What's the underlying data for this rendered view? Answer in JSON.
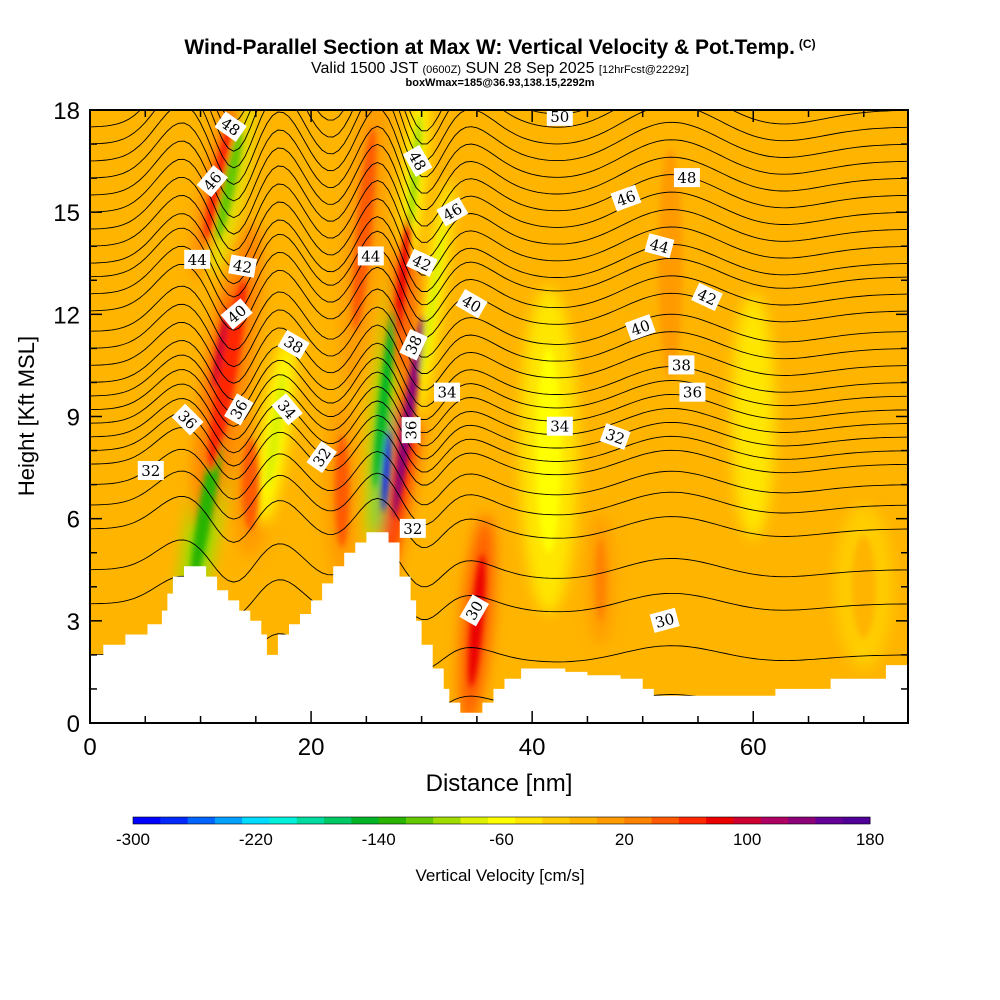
{
  "header": {
    "title": "Wind-Parallel Section at Max W: Vertical Velocity & Pot.Temp.",
    "title_mark": "(C)",
    "valid_prefix": "Valid 1500 JST",
    "valid_utc": "(0600Z)",
    "valid_date": "SUN 28 Sep 2025",
    "forecast_tag": "[12hrFcst@2229z]",
    "box_info": "boxWmax=185@36.93,138.15,2292m"
  },
  "chart_data": {
    "type": "heatmap",
    "title": "Wind-Parallel Section at Max W: Vertical Velocity & Pot.Temp.",
    "xlabel": "Distance [nm]",
    "ylabel": "Height [Kft MSL]",
    "xlim": [
      0,
      74
    ],
    "ylim": [
      0,
      18
    ],
    "xticks": [
      0,
      20,
      40,
      60
    ],
    "yticks": [
      0,
      3,
      6,
      9,
      12,
      15,
      18
    ],
    "colorbar": {
      "label": "Vertical Velocity [cm/s]",
      "min": -300,
      "max": 180,
      "step": 20,
      "tick_values": [
        -300,
        -220,
        -140,
        -60,
        20,
        100,
        180
      ],
      "colors": [
        "#0000ff",
        "#0028ff",
        "#0064ff",
        "#00a0ff",
        "#00dcff",
        "#00f0dc",
        "#00dca0",
        "#00c864",
        "#00b428",
        "#28b400",
        "#64c800",
        "#a0dc00",
        "#dcf000",
        "#ffff00",
        "#ffe600",
        "#ffcd00",
        "#ffb400",
        "#ff9b00",
        "#ff8200",
        "#ff5a00",
        "#ff2800",
        "#eb0000",
        "#cd0032",
        "#af0064",
        "#8c0078",
        "#640096",
        "#500096"
      ]
    },
    "terrain_kft": [
      [
        0,
        2.0
      ],
      [
        1.2,
        2.0
      ],
      [
        1.2,
        2.3
      ],
      [
        3.2,
        2.3
      ],
      [
        3.2,
        2.6
      ],
      [
        5.2,
        2.6
      ],
      [
        5.2,
        2.9
      ],
      [
        6.5,
        2.9
      ],
      [
        6.5,
        3.3
      ],
      [
        7.0,
        3.3
      ],
      [
        7.0,
        3.8
      ],
      [
        7.5,
        3.8
      ],
      [
        7.5,
        4.3
      ],
      [
        8.5,
        4.3
      ],
      [
        8.5,
        4.6
      ],
      [
        10.5,
        4.6
      ],
      [
        10.5,
        4.3
      ],
      [
        11.5,
        4.3
      ],
      [
        11.5,
        3.9
      ],
      [
        12.5,
        3.9
      ],
      [
        12.5,
        3.6
      ],
      [
        13.5,
        3.6
      ],
      [
        13.5,
        3.3
      ],
      [
        14.5,
        3.3
      ],
      [
        14.5,
        3.0
      ],
      [
        15.5,
        3.0
      ],
      [
        15.5,
        2.6
      ],
      [
        16.0,
        2.6
      ],
      [
        16.0,
        2.0
      ],
      [
        17.0,
        2.0
      ],
      [
        17.0,
        2.6
      ],
      [
        18.0,
        2.6
      ],
      [
        18.0,
        2.9
      ],
      [
        19.0,
        2.9
      ],
      [
        19.0,
        3.2
      ],
      [
        20.0,
        3.2
      ],
      [
        20.0,
        3.6
      ],
      [
        21.0,
        3.6
      ],
      [
        21.0,
        4.1
      ],
      [
        22.0,
        4.1
      ],
      [
        22.0,
        4.6
      ],
      [
        23.0,
        4.6
      ],
      [
        23.0,
        5.0
      ],
      [
        24.0,
        5.0
      ],
      [
        24.0,
        5.3
      ],
      [
        25.0,
        5.3
      ],
      [
        25.0,
        5.6
      ],
      [
        27.0,
        5.6
      ],
      [
        27.0,
        5.3
      ],
      [
        28.0,
        5.3
      ],
      [
        28.0,
        4.3
      ],
      [
        29.0,
        4.3
      ],
      [
        29.0,
        3.6
      ],
      [
        29.5,
        3.6
      ],
      [
        29.5,
        3.0
      ],
      [
        30.0,
        3.0
      ],
      [
        30.0,
        2.3
      ],
      [
        31.0,
        2.3
      ],
      [
        31.0,
        1.6
      ],
      [
        32.0,
        1.6
      ],
      [
        32.0,
        1.0
      ],
      [
        32.5,
        1.0
      ],
      [
        32.5,
        0.6
      ],
      [
        33.5,
        0.6
      ],
      [
        33.5,
        0.3
      ],
      [
        35.5,
        0.3
      ],
      [
        35.5,
        0.6
      ],
      [
        36.5,
        0.6
      ],
      [
        36.5,
        1.0
      ],
      [
        37.5,
        1.0
      ],
      [
        37.5,
        1.3
      ],
      [
        39.0,
        1.3
      ],
      [
        39.0,
        1.6
      ],
      [
        43.0,
        1.6
      ],
      [
        43.0,
        1.5
      ],
      [
        45.0,
        1.5
      ],
      [
        45.0,
        1.4
      ],
      [
        48.0,
        1.4
      ],
      [
        48.0,
        1.3
      ],
      [
        50.0,
        1.3
      ],
      [
        50.0,
        1.0
      ],
      [
        51.0,
        1.0
      ],
      [
        51.0,
        0.8
      ],
      [
        62.0,
        0.8
      ],
      [
        62.0,
        1.0
      ],
      [
        67.0,
        1.0
      ],
      [
        67.0,
        1.3
      ],
      [
        72.0,
        1.3
      ],
      [
        72.0,
        1.7
      ],
      [
        74.0,
        1.7
      ],
      [
        74.0,
        0
      ],
      [
        0,
        0
      ]
    ],
    "w_cells": [
      {
        "x": 10.6,
        "y": 6.5,
        "rx": 1.2,
        "ry": 3.5,
        "rot": 10,
        "w": -120
      },
      {
        "x": 12.6,
        "y": 15.8,
        "rx": 1.0,
        "ry": 2.2,
        "rot": 12,
        "w": -100
      },
      {
        "x": 11.6,
        "y": 16.0,
        "rx": 0.9,
        "ry": 2.5,
        "rot": 12,
        "w": 90
      },
      {
        "x": 12.4,
        "y": 10.2,
        "rx": 1.5,
        "ry": 3.8,
        "rot": 10,
        "w": 100
      },
      {
        "x": 11.8,
        "y": 11.0,
        "rx": 0.6,
        "ry": 1.6,
        "rot": 10,
        "w": 140
      },
      {
        "x": 14.5,
        "y": 7.0,
        "rx": 1.4,
        "ry": 1.8,
        "rot": 0,
        "w": 70
      },
      {
        "x": 16.8,
        "y": 8.6,
        "rx": 0.9,
        "ry": 2.3,
        "rot": 8,
        "w": -60
      },
      {
        "x": 22.8,
        "y": 6.8,
        "rx": 1.2,
        "ry": 2.2,
        "rot": 0,
        "w": 80
      },
      {
        "x": 24.8,
        "y": 14.5,
        "rx": 1.3,
        "ry": 4.0,
        "rot": 5,
        "w": 80
      },
      {
        "x": 26.6,
        "y": 9.5,
        "rx": 0.8,
        "ry": 3.5,
        "rot": 6,
        "w": -140
      },
      {
        "x": 26.8,
        "y": 7.4,
        "rx": 0.5,
        "ry": 1.6,
        "rot": 4,
        "w": -280
      },
      {
        "x": 28.8,
        "y": 9.0,
        "rx": 0.9,
        "ry": 4.0,
        "rot": 8,
        "w": 180
      },
      {
        "x": 28.3,
        "y": 13.2,
        "rx": 0.7,
        "ry": 2.5,
        "rot": 6,
        "w": 120
      },
      {
        "x": 29.4,
        "y": 16.2,
        "rx": 0.7,
        "ry": 2.2,
        "rot": 5,
        "w": -80
      },
      {
        "x": 31.0,
        "y": 12.4,
        "rx": 0.6,
        "ry": 3.0,
        "rot": 8,
        "w": -60
      },
      {
        "x": 35.0,
        "y": 3.0,
        "rx": 1.0,
        "ry": 2.6,
        "rot": 5,
        "w": 120
      },
      {
        "x": 46.2,
        "y": 4.2,
        "rx": 0.9,
        "ry": 1.6,
        "rot": 0,
        "w": 60
      },
      {
        "x": 41.5,
        "y": 8.0,
        "rx": 2.0,
        "ry": 4.0,
        "rot": 0,
        "w": -40
      },
      {
        "x": 52.5,
        "y": 13.5,
        "rx": 2.0,
        "ry": 4.5,
        "rot": 0,
        "w": 30
      },
      {
        "x": 60.0,
        "y": 9.0,
        "rx": 1.5,
        "ry": 3.0,
        "rot": 0,
        "w": -30
      },
      {
        "x": 70.0,
        "y": 4.0,
        "rx": 2.0,
        "ry": 2.0,
        "rot": 0,
        "w": 10
      }
    ],
    "theta_labels": [
      {
        "text": "48",
        "x": 12.7,
        "y": 17.5,
        "rot": 35
      },
      {
        "text": "46",
        "x": 11.1,
        "y": 15.9,
        "rot": -50
      },
      {
        "text": "44",
        "x": 9.7,
        "y": 13.6,
        "rot": 0
      },
      {
        "text": "42",
        "x": 13.8,
        "y": 13.4,
        "rot": 10
      },
      {
        "text": "40",
        "x": 13.3,
        "y": 12.0,
        "rot": -40
      },
      {
        "text": "38",
        "x": 18.4,
        "y": 11.1,
        "rot": 30
      },
      {
        "text": "36",
        "x": 8.8,
        "y": 8.9,
        "rot": 45
      },
      {
        "text": "36",
        "x": 13.5,
        "y": 9.2,
        "rot": -60
      },
      {
        "text": "34",
        "x": 17.8,
        "y": 9.2,
        "rot": 50
      },
      {
        "text": "32",
        "x": 5.5,
        "y": 7.4,
        "rot": 0
      },
      {
        "text": "32",
        "x": 21.0,
        "y": 7.8,
        "rot": -55
      },
      {
        "text": "44",
        "x": 25.4,
        "y": 13.7,
        "rot": 0
      },
      {
        "text": "42",
        "x": 30.0,
        "y": 13.5,
        "rot": 25
      },
      {
        "text": "48",
        "x": 29.6,
        "y": 16.5,
        "rot": 60
      },
      {
        "text": "46",
        "x": 32.8,
        "y": 15.0,
        "rot": -30
      },
      {
        "text": "40",
        "x": 34.5,
        "y": 12.3,
        "rot": 30
      },
      {
        "text": "38",
        "x": 29.3,
        "y": 11.1,
        "rot": -65
      },
      {
        "text": "36",
        "x": 29.1,
        "y": 8.6,
        "rot": -90
      },
      {
        "text": "34",
        "x": 32.3,
        "y": 9.7,
        "rot": 0
      },
      {
        "text": "32",
        "x": 29.2,
        "y": 5.7,
        "rot": 0
      },
      {
        "text": "30",
        "x": 34.8,
        "y": 3.3,
        "rot": -60
      },
      {
        "text": "50",
        "x": 42.5,
        "y": 17.8,
        "rot": 0
      },
      {
        "text": "48",
        "x": 54.0,
        "y": 16.0,
        "rot": 0
      },
      {
        "text": "46",
        "x": 48.5,
        "y": 15.4,
        "rot": -20
      },
      {
        "text": "44",
        "x": 51.5,
        "y": 14.0,
        "rot": 15
      },
      {
        "text": "42",
        "x": 55.8,
        "y": 12.5,
        "rot": 25
      },
      {
        "text": "40",
        "x": 49.8,
        "y": 11.6,
        "rot": -20
      },
      {
        "text": "38",
        "x": 53.5,
        "y": 10.5,
        "rot": 0
      },
      {
        "text": "36",
        "x": 54.5,
        "y": 9.7,
        "rot": 0
      },
      {
        "text": "34",
        "x": 42.5,
        "y": 8.7,
        "rot": 0
      },
      {
        "text": "32",
        "x": 47.5,
        "y": 8.4,
        "rot": 20
      },
      {
        "text": "30",
        "x": 52.0,
        "y": 3.0,
        "rot": -15
      }
    ],
    "theta_profile": {
      "levels_kft": [
        0.6,
        2.0,
        3.5,
        4.5,
        5.7,
        6.4,
        7.0,
        7.6,
        8.0,
        8.4,
        8.8,
        9.2,
        9.6,
        10.0,
        10.5,
        11.0,
        11.5,
        12.1,
        12.6,
        13.1,
        13.5,
        14.0,
        14.5,
        15.0,
        15.5,
        16.0,
        16.5,
        17.0,
        17.5,
        18.0,
        18.4
      ],
      "perturbations": [
        {
          "x": 8.5,
          "width": 3.5,
          "amp": 1.2
        },
        {
          "x": 13.0,
          "width": 2.5,
          "amp": -0.9
        },
        {
          "x": 17.0,
          "width": 3.0,
          "amp": 1.1
        },
        {
          "x": 22.5,
          "width": 3.0,
          "amp": -0.5
        },
        {
          "x": 26.0,
          "width": 3.0,
          "amp": 1.3
        },
        {
          "x": 30.0,
          "width": 2.5,
          "amp": -1.0
        },
        {
          "x": 34.0,
          "width": 3.5,
          "amp": 0.5
        },
        {
          "x": 44.0,
          "width": 8.0,
          "amp": -0.4
        },
        {
          "x": 52.0,
          "width": 6.0,
          "amp": 0.6
        },
        {
          "x": 62.0,
          "width": 6.0,
          "amp": -0.3
        }
      ]
    }
  }
}
